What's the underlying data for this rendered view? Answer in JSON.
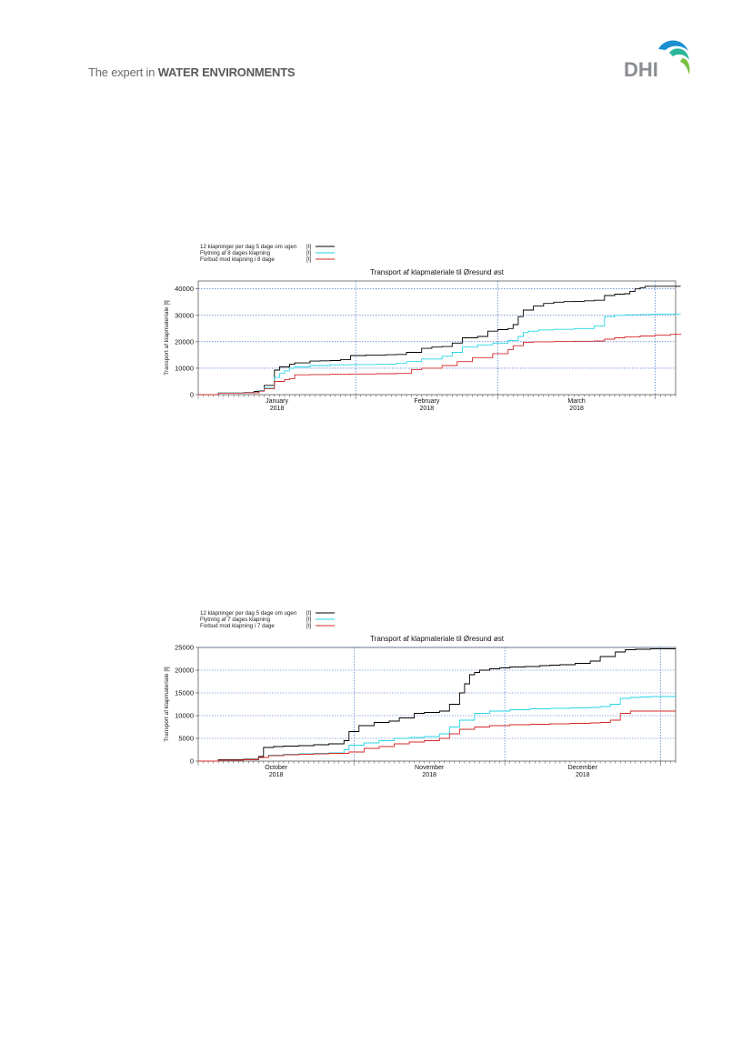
{
  "header": {
    "tagline_prefix": "The expert in ",
    "tagline_emphasis": "WATER ENVIRONMENTS",
    "logo_text": "DHI"
  },
  "colors": {
    "black_series": "#000000",
    "cyan_series": "#27d6e6",
    "red_series": "#d62a2a",
    "grid": "#2a5ac8"
  },
  "chart_data": [
    {
      "type": "line",
      "title": "Transport af klapmateriale til Øresund øst",
      "ylabel": "Transport af klapmateriale [t]",
      "xlabel": "",
      "ylim": [
        0,
        43000
      ],
      "yticks": [
        0,
        10000,
        20000,
        30000,
        40000
      ],
      "xlim": [
        "2018-01-01",
        "2018-04-05"
      ],
      "xtick_labels": [
        {
          "month": "January",
          "year": "2018"
        },
        {
          "month": "February",
          "year": "2018"
        },
        {
          "month": "March",
          "year": "2018"
        }
      ],
      "legend_placement": "top-left",
      "grid": true,
      "series": [
        {
          "name": "12 klapninger per dag 5 dage om ugen",
          "unit": "[t]",
          "color": "#000000",
          "x": [
            0,
            4,
            9,
            11,
            12,
            13,
            15,
            16,
            18,
            19,
            22,
            24,
            26,
            28,
            30,
            33,
            35,
            37,
            39,
            41,
            44,
            46,
            48,
            50,
            52,
            55,
            57,
            59,
            61,
            62,
            63,
            64,
            66,
            68,
            70,
            72,
            74,
            76,
            78,
            80,
            82,
            84,
            85,
            86,
            87,
            88,
            91,
            93,
            95
          ],
          "y": [
            0,
            700,
            800,
            1200,
            1500,
            3500,
            9300,
            10500,
            11500,
            12000,
            12700,
            12800,
            12900,
            13200,
            14800,
            15000,
            15000,
            15100,
            15200,
            16000,
            17500,
            18000,
            18200,
            19500,
            21500,
            22000,
            24000,
            24600,
            25000,
            26500,
            29500,
            32000,
            33500,
            34500,
            35000,
            35200,
            35300,
            35500,
            35700,
            37500,
            38000,
            38200,
            39000,
            40000,
            40500,
            41000,
            41000,
            41000,
            41000
          ]
        },
        {
          "name": "Flytning af 8 dages klapning",
          "unit": "[t]",
          "color": "#27d6e6",
          "x": [
            0,
            4,
            9,
            12,
            13,
            15,
            16,
            17,
            18,
            19,
            22,
            26,
            30,
            35,
            39,
            41,
            44,
            48,
            50,
            52,
            55,
            58,
            61,
            63,
            64,
            65,
            67,
            70,
            74,
            78,
            80,
            82,
            84,
            87,
            89,
            91,
            93,
            95
          ],
          "y": [
            0,
            700,
            800,
            1500,
            2500,
            6500,
            8000,
            9000,
            10000,
            10500,
            11000,
            11300,
            11400,
            11500,
            11800,
            12500,
            13500,
            14500,
            16000,
            18000,
            18800,
            19500,
            20500,
            22000,
            23500,
            24000,
            24500,
            24700,
            25000,
            26000,
            29500,
            30000,
            30200,
            30300,
            30400,
            30500,
            30500,
            30500
          ]
        },
        {
          "name": "Forbud mod klapning i 8 dage",
          "unit": "[t]",
          "color": "#d62a2a",
          "x": [
            0,
            4,
            9,
            12,
            13,
            15,
            17,
            18,
            19,
            22,
            26,
            30,
            35,
            39,
            42,
            44,
            48,
            51,
            54,
            58,
            61,
            62,
            64,
            66,
            70,
            74,
            78,
            80,
            82,
            84,
            87,
            90,
            93,
            95
          ],
          "y": [
            0,
            600,
            700,
            1300,
            2200,
            5000,
            5700,
            6000,
            7500,
            7600,
            7700,
            7800,
            7900,
            8000,
            9500,
            10000,
            11000,
            12500,
            14000,
            15500,
            17000,
            18500,
            19800,
            20000,
            20100,
            20200,
            20300,
            21000,
            21500,
            21800,
            22200,
            22500,
            22800,
            23000
          ]
        }
      ]
    },
    {
      "type": "line",
      "title": "Transport af klapmateriale til Øresund øst",
      "ylabel": "Transport af klapmateriale [t]",
      "xlabel": "",
      "ylim": [
        0,
        25000
      ],
      "yticks": [
        0,
        5000,
        10000,
        15000,
        20000,
        25000
      ],
      "xlim": [
        "2018-10-01",
        "2019-01-04"
      ],
      "xtick_labels": [
        {
          "month": "October",
          "year": "2018"
        },
        {
          "month": "November",
          "year": "2018"
        },
        {
          "month": "December",
          "year": "2018"
        }
      ],
      "legend_placement": "top-left",
      "grid": true,
      "series": [
        {
          "name": "12 klapninger per dag 5 dage om ugen",
          "unit": "[t]",
          "color": "#000000",
          "x": [
            0,
            4,
            9,
            12,
            13,
            15,
            17,
            20,
            23,
            26,
            29,
            30,
            32,
            35,
            38,
            40,
            43,
            45,
            48,
            50,
            52,
            53,
            54,
            55,
            56,
            58,
            60,
            62,
            65,
            68,
            70,
            72,
            75,
            78,
            80,
            83,
            85,
            87,
            90,
            93,
            95
          ],
          "y": [
            0,
            300,
            400,
            1000,
            3000,
            3200,
            3300,
            3400,
            3600,
            3800,
            4500,
            6500,
            7800,
            8500,
            8800,
            9500,
            10500,
            10700,
            11000,
            12500,
            15000,
            17000,
            19000,
            19500,
            20000,
            20300,
            20500,
            20700,
            20800,
            21000,
            21100,
            21200,
            21500,
            22000,
            23000,
            24000,
            24500,
            24600,
            24700,
            24700,
            24700
          ]
        },
        {
          "name": "Flytning af 7 dages klapning",
          "unit": "[t]",
          "color": "#27d6e6",
          "x": [
            0,
            4,
            9,
            12,
            14,
            17,
            20,
            23,
            26,
            29,
            30,
            33,
            36,
            39,
            42,
            45,
            48,
            50,
            52,
            55,
            58,
            62,
            66,
            70,
            74,
            78,
            80,
            82,
            84,
            86,
            88,
            90,
            95
          ],
          "y": [
            0,
            200,
            300,
            800,
            1300,
            1500,
            1600,
            1700,
            1800,
            2500,
            3500,
            4000,
            4500,
            5000,
            5200,
            5400,
            6000,
            7500,
            9000,
            10500,
            11000,
            11300,
            11500,
            11600,
            11700,
            11800,
            12000,
            12500,
            13800,
            14000,
            14100,
            14200,
            14200
          ]
        },
        {
          "name": "Forbud mod klapning i 7 dage",
          "unit": "[t]",
          "color": "#d62a2a",
          "x": [
            0,
            4,
            9,
            12,
            14,
            17,
            20,
            23,
            26,
            30,
            33,
            36,
            39,
            42,
            45,
            48,
            50,
            52,
            55,
            58,
            62,
            66,
            70,
            74,
            78,
            80,
            82,
            84,
            86,
            88,
            90,
            95
          ],
          "y": [
            0,
            200,
            300,
            800,
            1200,
            1400,
            1500,
            1600,
            1700,
            2000,
            2800,
            3200,
            3800,
            4200,
            4500,
            5000,
            6000,
            7000,
            7500,
            7800,
            8000,
            8100,
            8200,
            8300,
            8400,
            8500,
            9000,
            10500,
            11000,
            11000,
            11000,
            11000
          ]
        }
      ]
    }
  ]
}
